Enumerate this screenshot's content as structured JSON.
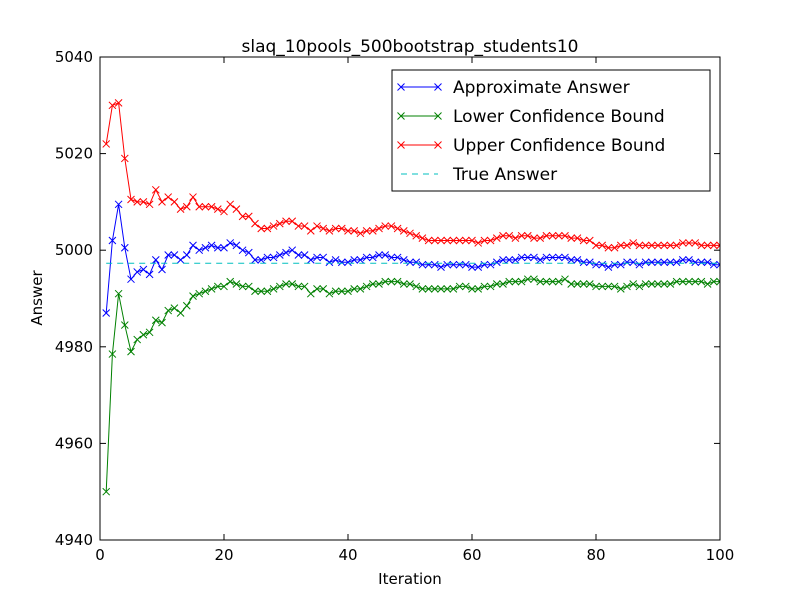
{
  "chart_data": {
    "type": "line",
    "title": "slaq_10pools_500bootstrap_students10",
    "xlabel": "Iteration",
    "ylabel": "Answer",
    "xlim": [
      0,
      100
    ],
    "ylim": [
      4940,
      5040
    ],
    "xticks": [
      0,
      20,
      40,
      60,
      80,
      100
    ],
    "yticks": [
      4940,
      4960,
      4980,
      5000,
      5020,
      5040
    ],
    "legend_position": "top-right",
    "series": [
      {
        "name": "Approximate Answer",
        "color": "#0000ff",
        "style": "solid",
        "marker": "x",
        "values": [
          4987.0,
          5002.0,
          5009.5,
          5000.5,
          4994.0,
          4995.5,
          4996.0,
          4995.0,
          4998.0,
          4996.0,
          4999.0,
          4999.0,
          4998.0,
          4999.0,
          5001.0,
          5000.0,
          5000.5,
          5001.0,
          5000.5,
          5000.5,
          5001.5,
          5001.0,
          5000.0,
          4999.5,
          4998.0,
          4998.0,
          4998.5,
          4998.5,
          4999.0,
          4999.5,
          5000.0,
          4999.0,
          4999.0,
          4998.0,
          4998.5,
          4998.5,
          4997.5,
          4998.0,
          4997.5,
          4997.5,
          4998.0,
          4998.0,
          4998.5,
          4998.5,
          4999.0,
          4999.0,
          4998.5,
          4998.5,
          4998.0,
          4997.5,
          4997.5,
          4997.0,
          4997.0,
          4997.0,
          4996.5,
          4997.0,
          4997.0,
          4997.0,
          4997.0,
          4996.5,
          4996.5,
          4997.0,
          4997.0,
          4997.5,
          4998.0,
          4998.0,
          4998.0,
          4998.5,
          4998.5,
          4998.5,
          4998.0,
          4998.5,
          4998.5,
          4998.5,
          4998.5,
          4998.0,
          4998.0,
          4997.5,
          4997.5,
          4997.0,
          4997.0,
          4996.5,
          4997.0,
          4997.0,
          4997.5,
          4997.5,
          4997.0,
          4997.5,
          4997.5,
          4997.5,
          4997.5,
          4997.5,
          4997.5,
          4998.0,
          4998.0,
          4997.5,
          4997.5,
          4997.5,
          4997.0,
          4997.0,
          4997.5
        ]
      },
      {
        "name": "Lower Confidence Bound",
        "color": "#008000",
        "style": "solid",
        "marker": "x",
        "values": [
          4950.0,
          4978.5,
          4991.0,
          4984.5,
          4979.0,
          4981.5,
          4982.5,
          4983.0,
          4985.5,
          4985.0,
          4987.5,
          4988.0,
          4987.0,
          4988.5,
          4990.5,
          4991.0,
          4991.5,
          4992.0,
          4992.5,
          4992.5,
          4993.5,
          4993.0,
          4992.5,
          4992.5,
          4991.5,
          4991.5,
          4991.5,
          4992.0,
          4992.5,
          4993.0,
          4993.0,
          4992.5,
          4992.5,
          4991.0,
          4992.0,
          4992.0,
          4991.0,
          4991.5,
          4991.5,
          4991.5,
          4992.0,
          4992.0,
          4992.5,
          4993.0,
          4993.0,
          4993.5,
          4993.5,
          4993.5,
          4993.0,
          4993.0,
          4992.5,
          4992.0,
          4992.0,
          4992.0,
          4992.0,
          4992.0,
          4992.0,
          4992.5,
          4992.5,
          4992.0,
          4992.0,
          4992.5,
          4992.5,
          4993.0,
          4993.0,
          4993.5,
          4993.5,
          4993.5,
          4994.0,
          4994.0,
          4993.5,
          4993.5,
          4993.5,
          4993.5,
          4994.0,
          4993.0,
          4993.0,
          4993.0,
          4993.0,
          4992.5,
          4992.5,
          4992.5,
          4992.5,
          4992.0,
          4992.5,
          4993.0,
          4992.5,
          4993.0,
          4993.0,
          4993.0,
          4993.0,
          4993.0,
          4993.5,
          4993.5,
          4993.5,
          4993.5,
          4993.5,
          4993.0,
          4993.5,
          4993.5,
          4994.0
        ]
      },
      {
        "name": "Upper Confidence Bound",
        "color": "#ff0000",
        "style": "solid",
        "marker": "x",
        "values": [
          5022.0,
          5030.0,
          5030.5,
          5019.0,
          5010.5,
          5010.0,
          5010.0,
          5009.5,
          5012.5,
          5010.0,
          5011.0,
          5010.0,
          5008.5,
          5009.0,
          5011.0,
          5009.0,
          5009.0,
          5009.0,
          5008.5,
          5008.0,
          5009.5,
          5008.5,
          5007.0,
          5007.0,
          5005.5,
          5004.5,
          5004.5,
          5005.0,
          5005.5,
          5006.0,
          5006.0,
          5005.0,
          5005.0,
          5004.0,
          5005.0,
          5004.5,
          5004.0,
          5004.5,
          5004.5,
          5004.0,
          5004.0,
          5003.5,
          5004.0,
          5004.0,
          5004.5,
          5005.0,
          5005.0,
          5004.5,
          5004.0,
          5003.5,
          5003.0,
          5002.5,
          5002.0,
          5002.0,
          5002.0,
          5002.0,
          5002.0,
          5002.0,
          5002.0,
          5002.0,
          5001.5,
          5002.0,
          5002.0,
          5002.5,
          5003.0,
          5003.0,
          5002.5,
          5003.0,
          5003.0,
          5002.5,
          5002.5,
          5003.0,
          5003.0,
          5003.0,
          5003.0,
          5002.5,
          5002.5,
          5002.0,
          5002.0,
          5001.0,
          5001.0,
          5000.5,
          5000.5,
          5001.0,
          5001.0,
          5001.5,
          5001.0,
          5001.0,
          5001.0,
          5001.0,
          5001.0,
          5001.0,
          5001.0,
          5001.5,
          5001.5,
          5001.5,
          5001.0,
          5001.0,
          5001.0,
          5001.0,
          4997.5
        ]
      },
      {
        "name": "True Answer",
        "color": "#00bfbf",
        "style": "dashed",
        "marker": "none",
        "x": [
          1,
          100
        ],
        "values": [
          4997.3,
          4997.3
        ]
      }
    ]
  }
}
